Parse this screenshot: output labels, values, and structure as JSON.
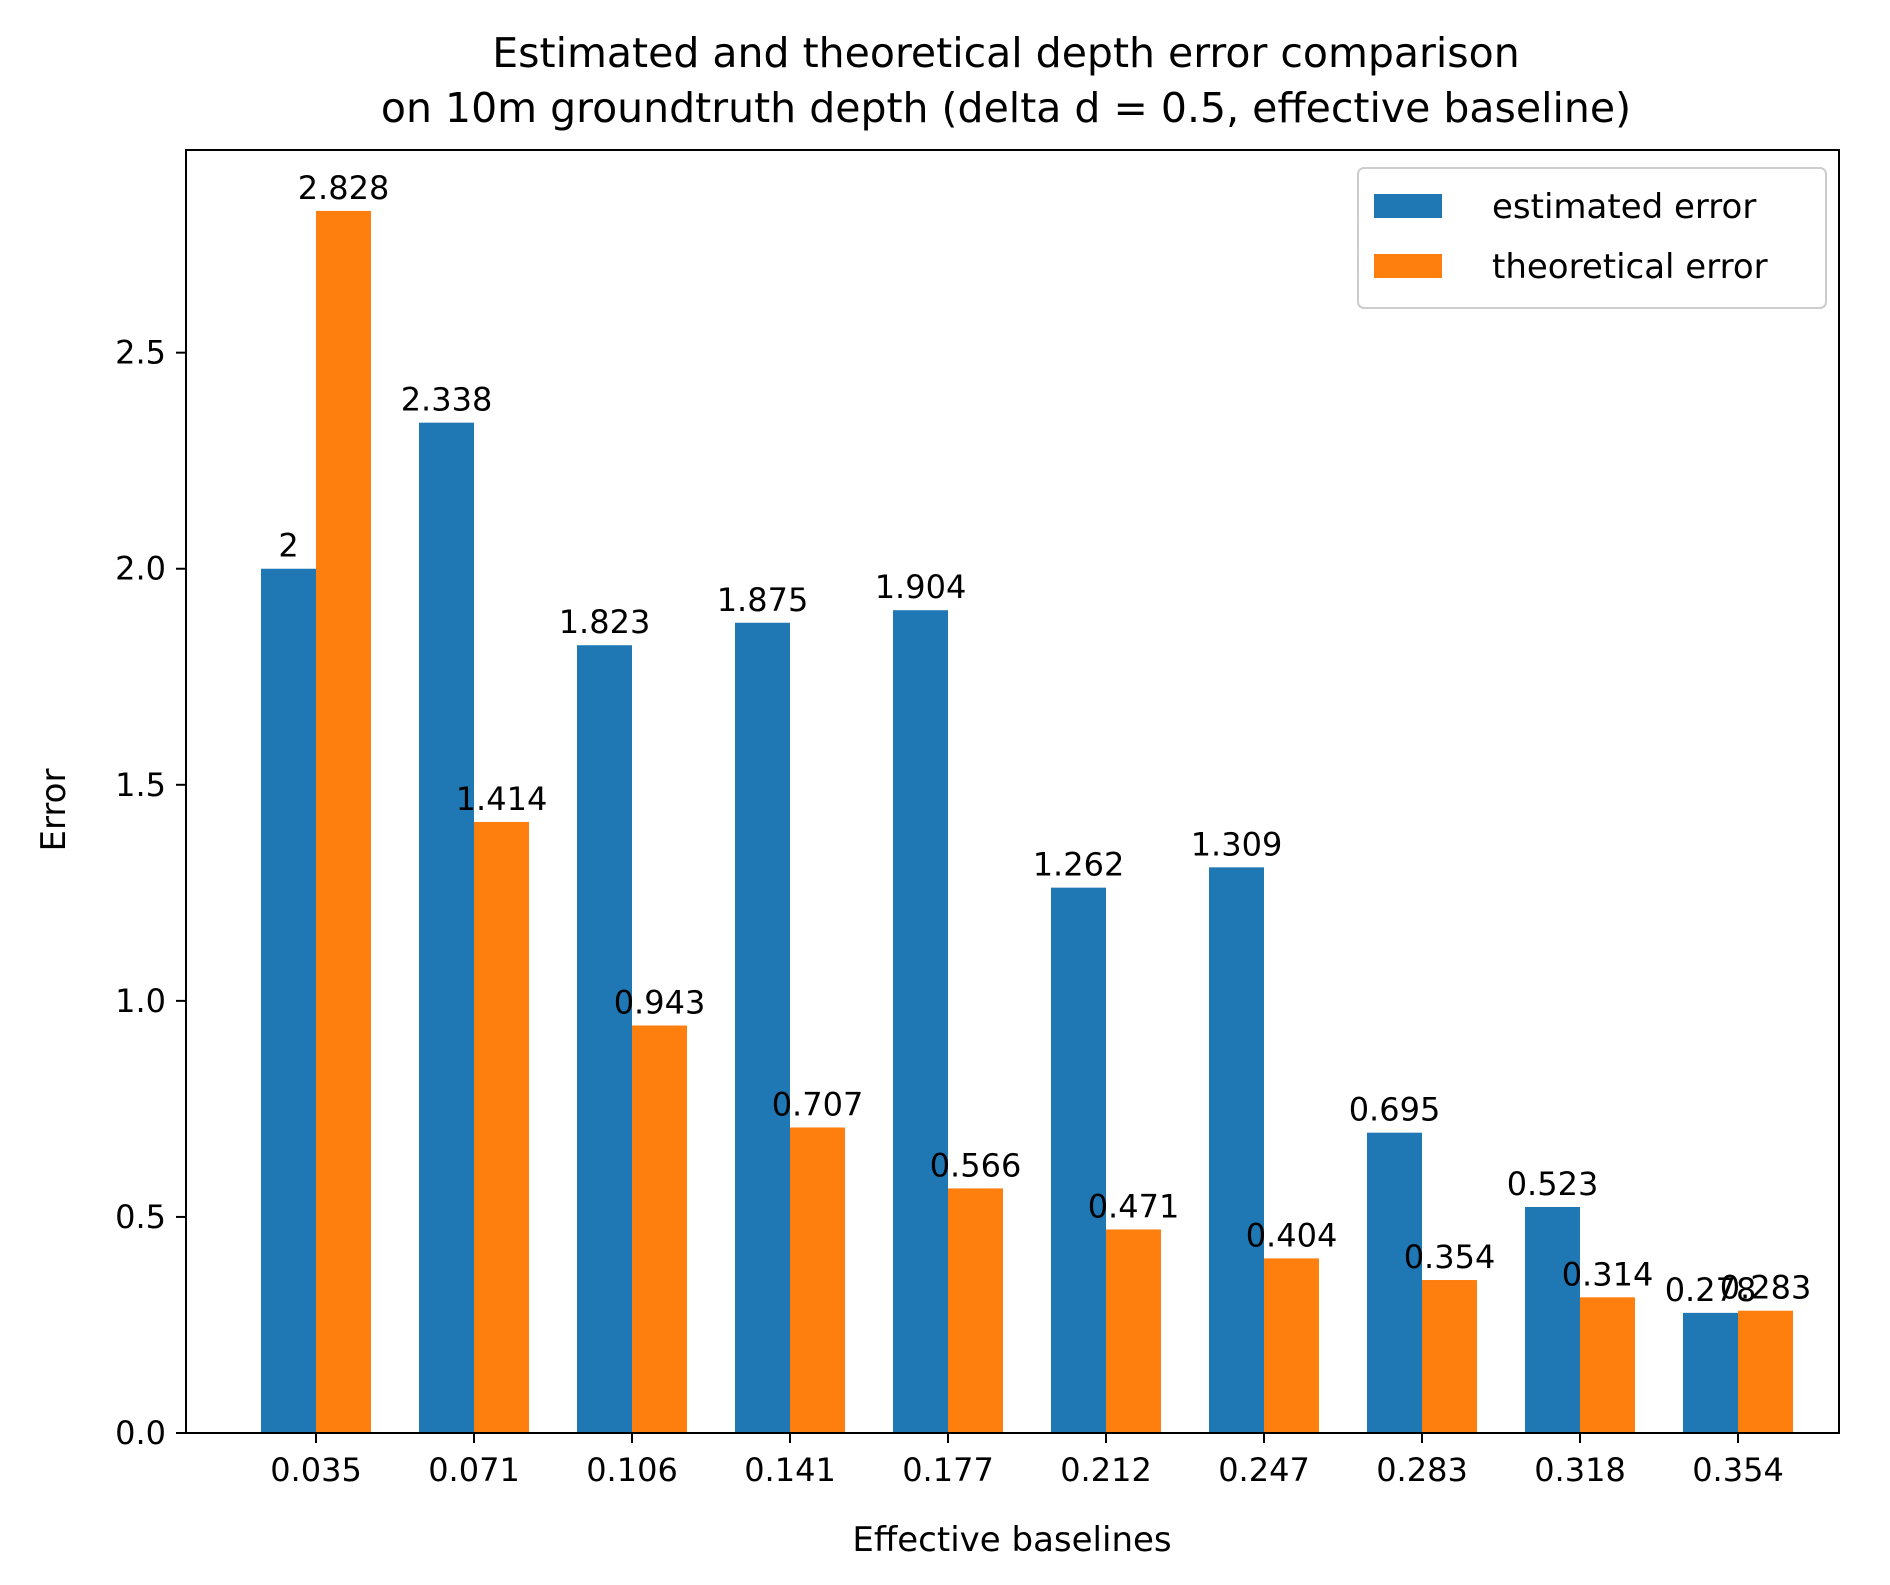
{
  "chart_data": {
    "type": "bar",
    "title": "Estimated and theoretical depth error comparison\non 10m groundtruth depth (delta d = 0.5, effective baseline)",
    "xlabel": "Effective baselines",
    "ylabel": "Error",
    "categories": [
      "0.035",
      "0.071",
      "0.106",
      "0.141",
      "0.177",
      "0.212",
      "0.247",
      "0.283",
      "0.318",
      "0.354"
    ],
    "series": [
      {
        "name": "estimated error",
        "color": "#1f77b4",
        "values": [
          2,
          2.338,
          1.823,
          1.875,
          1.904,
          1.262,
          1.309,
          0.695,
          0.523,
          0.278
        ],
        "labels": [
          "2",
          "2.338",
          "1.823",
          "1.875",
          "1.904",
          "1.262",
          "1.309",
          "0.695",
          "0.523",
          "0.278"
        ]
      },
      {
        "name": "theoretical error",
        "color": "#ff7f0e",
        "values": [
          2.828,
          1.414,
          0.943,
          0.707,
          0.566,
          0.471,
          0.404,
          0.354,
          0.314,
          0.283
        ],
        "labels": [
          "2.828",
          "1.414",
          "0.943",
          "0.707",
          "0.566",
          "0.471",
          "0.404",
          "0.354",
          "0.314",
          "0.283"
        ]
      }
    ],
    "ylim": [
      0,
      2.969
    ],
    "yticks": [
      "0.0",
      "0.5",
      "1.0",
      "1.5",
      "2.0",
      "2.5"
    ],
    "ytick_values": [
      0,
      0.5,
      1.0,
      1.5,
      2.0,
      2.5
    ],
    "grid": false,
    "legend_position": "top-right"
  }
}
